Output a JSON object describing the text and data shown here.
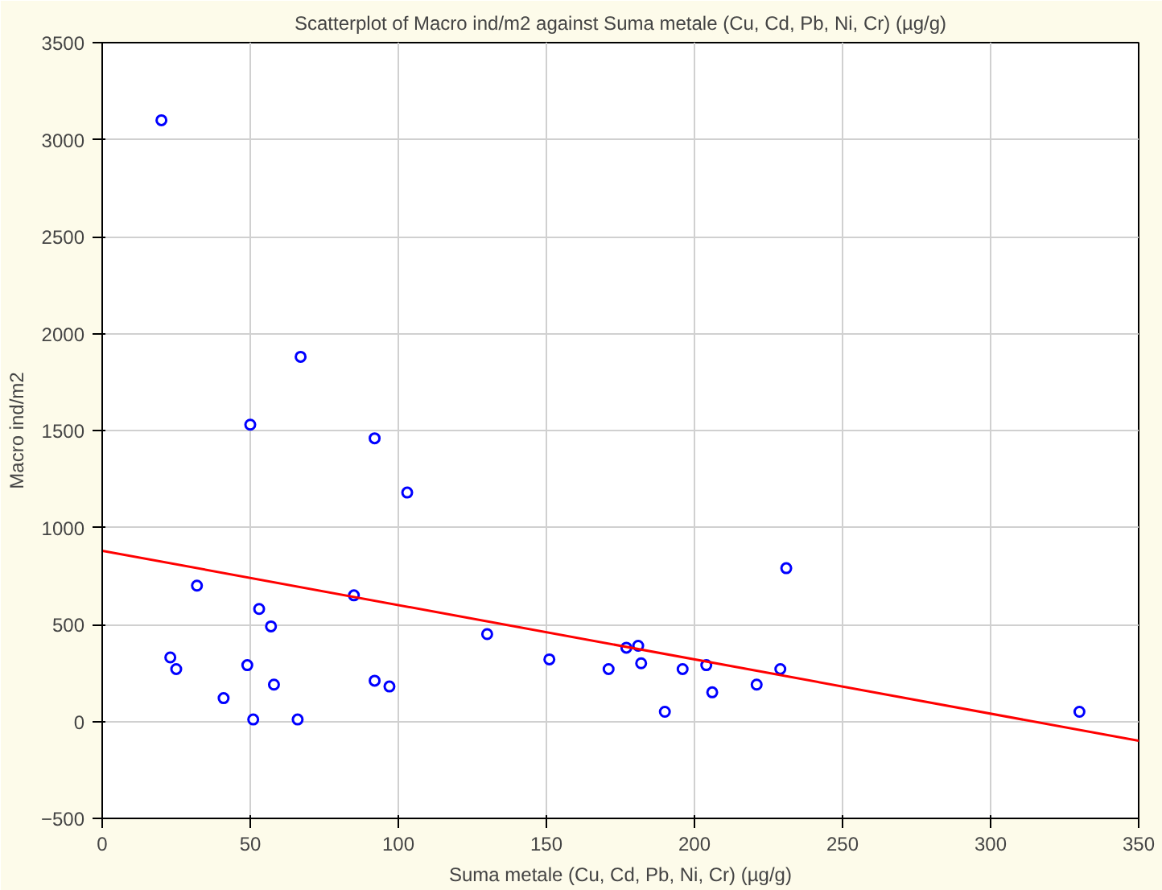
{
  "chart_data": {
    "type": "scatter",
    "title": "Scatterplot of Macro ind/m2 against Suma metale (Cu, Cd, Pb, Ni, Cr) (µg/g)",
    "xlabel": "Suma metale (Cu, Cd, Pb, Ni, Cr) (µg/g)",
    "ylabel": "Macro ind/m2",
    "xlim": [
      0,
      350
    ],
    "xticks": [
      0,
      50,
      100,
      150,
      200,
      250,
      300,
      350
    ],
    "ylim": [
      -500,
      3500
    ],
    "yticks": [
      -500,
      0,
      500,
      1000,
      1500,
      2000,
      2500,
      3000,
      3500
    ],
    "grid": true,
    "series": [
      {
        "color": "#0000ff",
        "marker": "circle",
        "x": [
          20,
          50,
          67,
          92,
          103,
          85,
          32,
          53,
          57,
          23,
          25,
          49,
          41,
          51,
          58,
          66,
          92,
          97,
          130,
          151,
          171,
          177,
          181,
          182,
          190,
          196,
          204,
          206,
          221,
          229,
          231,
          330
        ],
        "values": [
          3100,
          1530,
          1880,
          1460,
          1180,
          650,
          700,
          580,
          490,
          330,
          270,
          290,
          120,
          10,
          190,
          10,
          210,
          180,
          450,
          320,
          270,
          380,
          390,
          300,
          50,
          270,
          290,
          150,
          190,
          270,
          790,
          50
        ]
      },
      {
        "type": "line",
        "color": "#ff0000",
        "x": [
          0,
          350
        ],
        "values": [
          880,
          -100
        ]
      }
    ]
  }
}
